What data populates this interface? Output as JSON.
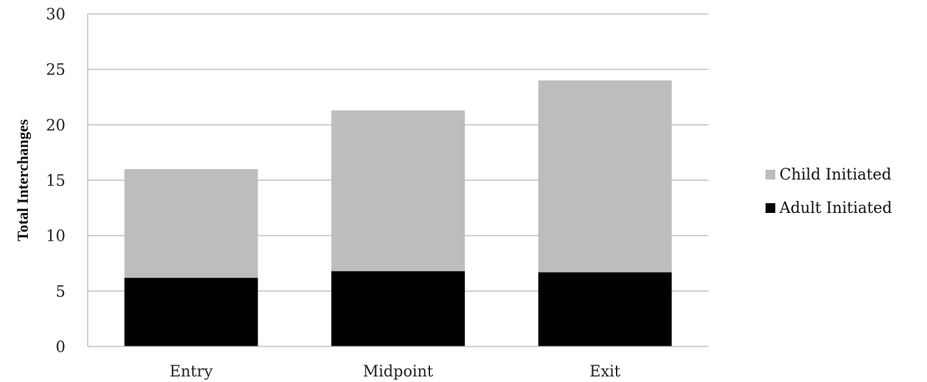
{
  "chart_data": {
    "type": "bar",
    "stacked": true,
    "categories": [
      "Entry",
      "Midpoint",
      "Exit"
    ],
    "series": [
      {
        "name": "Adult Initiated",
        "values": [
          6.2,
          6.8,
          6.7
        ],
        "color": "#000000"
      },
      {
        "name": "Child Initiated",
        "values": [
          9.8,
          14.5,
          17.3
        ],
        "color": "#bdbdbd"
      }
    ],
    "ylabel": "Total Interchanges",
    "xlabel": "",
    "ylim": [
      0,
      30
    ],
    "yticks": [
      0,
      5,
      10,
      15,
      20,
      25,
      30
    ],
    "grid": true,
    "gridline_color": "#bfbfbf",
    "legend": {
      "position": "right",
      "entries": [
        "Child Initiated",
        "Adult Initiated"
      ]
    }
  }
}
